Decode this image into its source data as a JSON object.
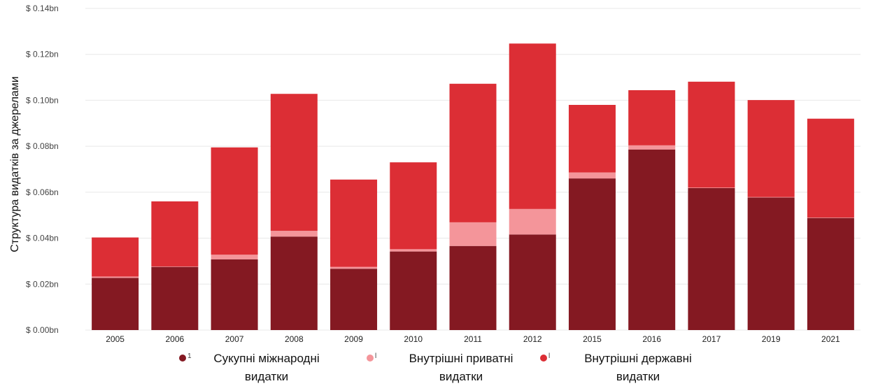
{
  "chart_data": {
    "type": "bar",
    "stacked": true,
    "title": "",
    "xlabel": "",
    "ylabel": "Структура видатків за джерелами",
    "ylim": [
      0,
      0.14
    ],
    "yticks": [
      0,
      0.02,
      0.04,
      0.06,
      0.08,
      0.1,
      0.12,
      0.14
    ],
    "ytick_labels": [
      "$ 0.00bn",
      "$ 0.02bn",
      "$ 0.04bn",
      "$ 0.06bn",
      "$ 0.08bn",
      "$ 0.10bn",
      "$ 0.12bn",
      "$ 0.14bn"
    ],
    "grid": true,
    "legend_position": "bottom",
    "categories": [
      "2005",
      "2006",
      "2007",
      "2008",
      "2009",
      "2010",
      "2011",
      "2012",
      "2015",
      "2016",
      "2017",
      "2019",
      "2021"
    ],
    "series": [
      {
        "name": "Сукупні міжнародні видатки",
        "color": "#841922",
        "values": [
          0.0227,
          0.0275,
          0.0308,
          0.0407,
          0.0267,
          0.0342,
          0.0366,
          0.0416,
          0.066,
          0.0786,
          0.0618,
          0.0577,
          0.0488
        ]
      },
      {
        "name": "Внутрішні приватні видатки",
        "color": "#f4959a",
        "values": [
          0.0006,
          0.0002,
          0.002,
          0.0025,
          0.0008,
          0.001,
          0.0103,
          0.0111,
          0.0026,
          0.0018,
          0.0002,
          0.0002,
          0.0002
        ]
      },
      {
        "name": "Внутрішні державні видатки",
        "color": "#dc2e35",
        "values": [
          0.017,
          0.0283,
          0.0467,
          0.0596,
          0.038,
          0.0378,
          0.0603,
          0.072,
          0.0294,
          0.024,
          0.0461,
          0.0422,
          0.043
        ]
      }
    ]
  },
  "legend": {
    "items": [
      {
        "mark": "1",
        "label": "Сукупні міжнародні видатки",
        "color": "#841922"
      },
      {
        "mark": "l",
        "label": "Внутрішні приватні видатки",
        "color": "#f4959a"
      },
      {
        "mark": "l",
        "label": "Внутрішні державні видатки",
        "color": "#dc2e35"
      }
    ]
  },
  "colors": {
    "grid": "#e8e8e8",
    "axis_text": "#444444"
  }
}
